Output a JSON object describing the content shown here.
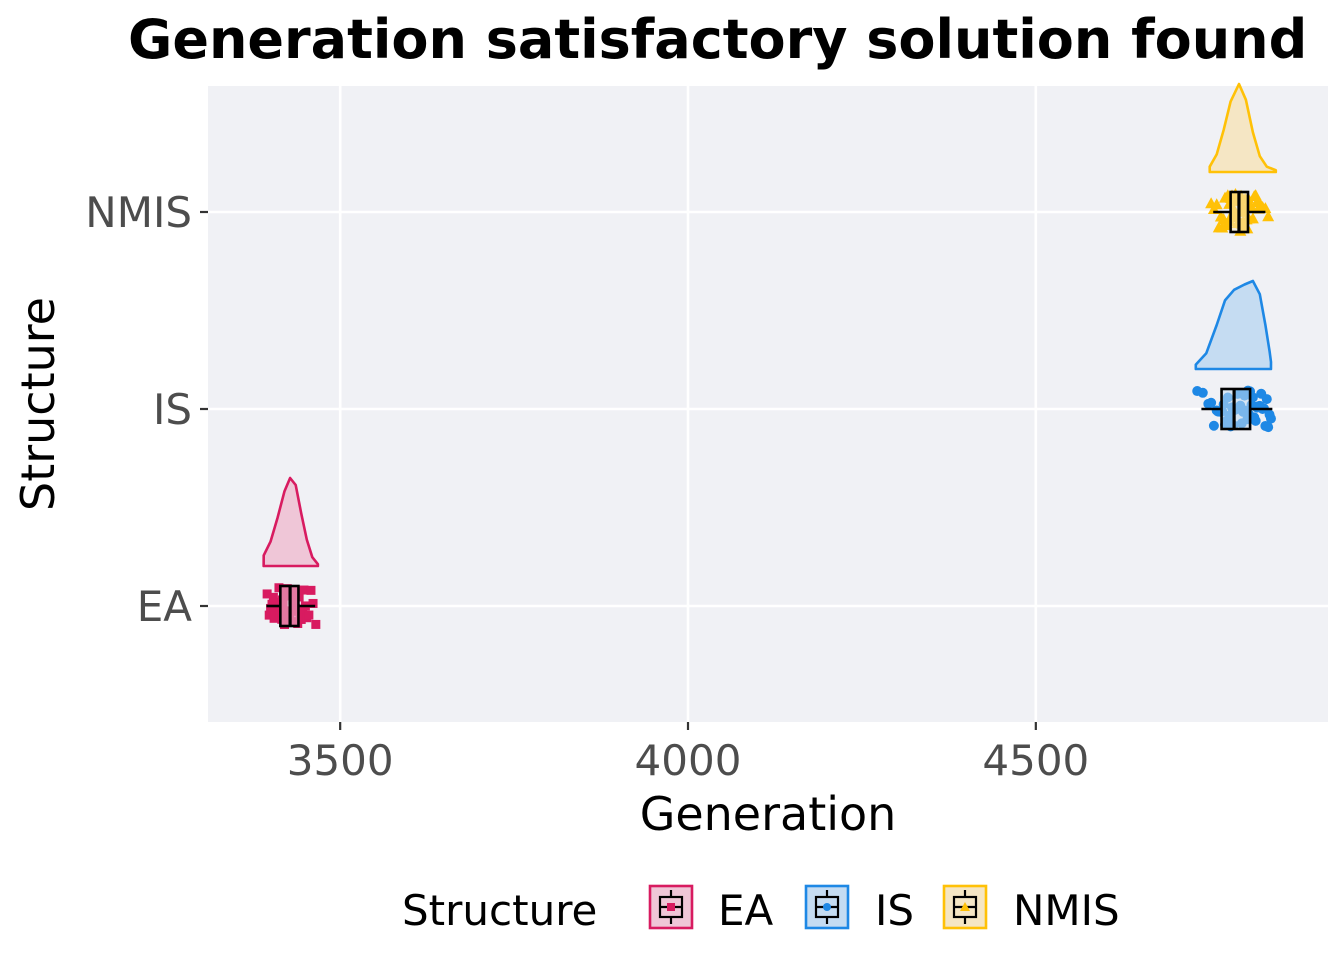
{
  "chart_data": {
    "type": "raincloud",
    "title": "Generation satisfactory solution found",
    "xlabel": "Generation",
    "ylabel": "Structure",
    "xlim": [
      3310,
      4920
    ],
    "x_ticks": [
      3500,
      4000,
      4500
    ],
    "categories": [
      "EA",
      "IS",
      "NMIS"
    ],
    "grid": true,
    "legend": {
      "title": "Structure",
      "position": "bottom",
      "entries": [
        "EA",
        "IS",
        "NMIS"
      ]
    },
    "series": [
      {
        "name": "EA",
        "color": "#D81B60",
        "fill": "#EFC6D7",
        "marker": "square",
        "box": {
          "min": 3394,
          "q1": 3414,
          "median": 3428,
          "q3": 3440,
          "max": 3464
        },
        "density": [
          [
            3390,
            0.12
          ],
          [
            3400,
            0.28
          ],
          [
            3410,
            0.55
          ],
          [
            3420,
            0.85
          ],
          [
            3428,
            1.0
          ],
          [
            3436,
            0.92
          ],
          [
            3444,
            0.6
          ],
          [
            3452,
            0.3
          ],
          [
            3460,
            0.1
          ],
          [
            3468,
            0.02
          ]
        ],
        "points": [
          3395,
          3398,
          3400,
          3402,
          3404,
          3405,
          3407,
          3408,
          3410,
          3411,
          3412,
          3413,
          3414,
          3415,
          3416,
          3417,
          3418,
          3419,
          3420,
          3421,
          3422,
          3423,
          3424,
          3425,
          3426,
          3427,
          3428,
          3429,
          3430,
          3431,
          3432,
          3433,
          3434,
          3435,
          3436,
          3437,
          3438,
          3439,
          3440,
          3441,
          3442,
          3444,
          3446,
          3448,
          3450,
          3452,
          3455,
          3458,
          3461,
          3465
        ]
      },
      {
        "name": "IS",
        "color": "#1E88E5",
        "fill": "#C5DCF2",
        "marker": "circle",
        "box": {
          "min": 4738,
          "q1": 4767,
          "median": 4785,
          "q3": 4808,
          "max": 4840
        },
        "density": [
          [
            4730,
            0.05
          ],
          [
            4745,
            0.18
          ],
          [
            4760,
            0.5
          ],
          [
            4772,
            0.78
          ],
          [
            4785,
            0.9
          ],
          [
            4800,
            0.96
          ],
          [
            4812,
            1.0
          ],
          [
            4822,
            0.85
          ],
          [
            4830,
            0.5
          ],
          [
            4836,
            0.2
          ],
          [
            4838,
            0.08
          ]
        ],
        "points": [
          4732,
          4740,
          4748,
          4752,
          4756,
          4760,
          4762,
          4764,
          4766,
          4768,
          4770,
          4772,
          4774,
          4776,
          4778,
          4779,
          4780,
          4782,
          4784,
          4785,
          4786,
          4788,
          4790,
          4792,
          4794,
          4796,
          4798,
          4800,
          4802,
          4804,
          4805,
          4806,
          4808,
          4810,
          4812,
          4813,
          4814,
          4816,
          4818,
          4819,
          4820,
          4822,
          4824,
          4826,
          4828,
          4830,
          4832,
          4834,
          4836,
          4838
        ]
      },
      {
        "name": "NMIS",
        "color": "#FFC107",
        "fill": "#F5E6C4",
        "marker": "triangle",
        "box": {
          "min": 4755,
          "q1": 4780,
          "median": 4792,
          "q3": 4805,
          "max": 4830
        },
        "density": [
          [
            4750,
            0.06
          ],
          [
            4760,
            0.2
          ],
          [
            4770,
            0.48
          ],
          [
            4780,
            0.8
          ],
          [
            4792,
            1.0
          ],
          [
            4802,
            0.82
          ],
          [
            4812,
            0.45
          ],
          [
            4822,
            0.18
          ],
          [
            4832,
            0.06
          ],
          [
            4845,
            0.02
          ]
        ],
        "points": [
          4752,
          4756,
          4760,
          4763,
          4766,
          4768,
          4770,
          4772,
          4774,
          4776,
          4778,
          4779,
          4780,
          4781,
          4782,
          4783,
          4784,
          4785,
          4786,
          4787,
          4788,
          4789,
          4790,
          4791,
          4792,
          4793,
          4794,
          4795,
          4796,
          4797,
          4798,
          4799,
          4800,
          4801,
          4802,
          4803,
          4804,
          4805,
          4806,
          4808,
          4810,
          4812,
          4814,
          4816,
          4818,
          4820,
          4823,
          4826,
          4830,
          4834
        ]
      }
    ]
  }
}
